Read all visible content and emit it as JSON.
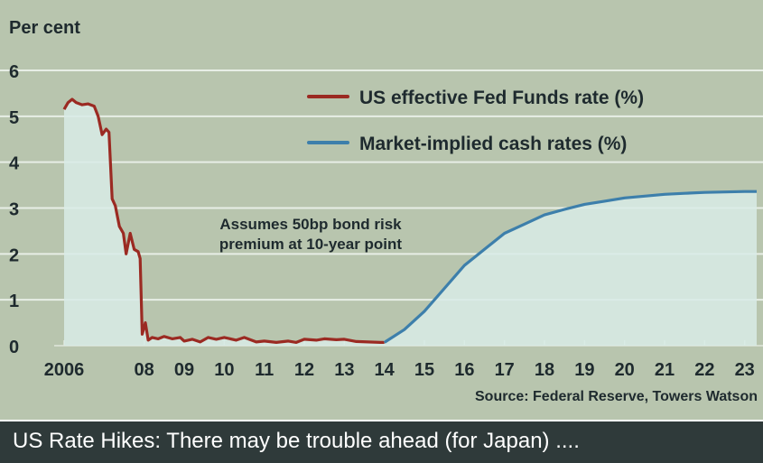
{
  "colors": {
    "background": "#b8c5ae",
    "fed_funds": "#9b2a22",
    "market_implied": "#3d7fab",
    "area_fill": "#d8ebe6",
    "gridline": "#e7eee6",
    "text": "#1e2a2e",
    "caption_bg": "#2f3a3a",
    "caption_text": "#ffffff"
  },
  "caption": "US Rate Hikes: There may be trouble ahead (for Japan) ....",
  "chart_data": {
    "type": "line",
    "ylabel": "Per cent",
    "ylim": [
      0,
      6
    ],
    "xlim": [
      2006,
      2023.3
    ],
    "yticks": [
      0,
      1,
      2,
      3,
      4,
      5,
      6
    ],
    "grid": true,
    "legend_position": "top-right",
    "xtick_labels": [
      {
        "x": 2006,
        "label": "2006"
      },
      {
        "x": 2008,
        "label": "08"
      },
      {
        "x": 2009,
        "label": "09"
      },
      {
        "x": 2010,
        "label": "10"
      },
      {
        "x": 2011,
        "label": "11"
      },
      {
        "x": 2012,
        "label": "12"
      },
      {
        "x": 2013,
        "label": "13"
      },
      {
        "x": 2014,
        "label": "14"
      },
      {
        "x": 2015,
        "label": "15"
      },
      {
        "x": 2016,
        "label": "16"
      },
      {
        "x": 2017,
        "label": "17"
      },
      {
        "x": 2018,
        "label": "18"
      },
      {
        "x": 2019,
        "label": "19"
      },
      {
        "x": 2020,
        "label": "20"
      },
      {
        "x": 2021,
        "label": "21"
      },
      {
        "x": 2022,
        "label": "22"
      },
      {
        "x": 2023,
        "label": "23"
      }
    ],
    "annotation": [
      "Assumes 50bp bond risk",
      "premium at 10-year point"
    ],
    "source": "Source: Federal Reserve, Towers Watson",
    "series": [
      {
        "name": "US effective Fed Funds rate (%)",
        "color": "#9b2a22",
        "points": [
          [
            2006.0,
            5.15
          ],
          [
            2006.1,
            5.3
          ],
          [
            2006.2,
            5.37
          ],
          [
            2006.3,
            5.3
          ],
          [
            2006.45,
            5.25
          ],
          [
            2006.6,
            5.27
          ],
          [
            2006.75,
            5.22
          ],
          [
            2006.85,
            5.0
          ],
          [
            2006.95,
            4.6
          ],
          [
            2007.05,
            4.72
          ],
          [
            2007.12,
            4.65
          ],
          [
            2007.2,
            3.2
          ],
          [
            2007.28,
            3.05
          ],
          [
            2007.38,
            2.6
          ],
          [
            2007.48,
            2.45
          ],
          [
            2007.55,
            2.0
          ],
          [
            2007.65,
            2.45
          ],
          [
            2007.75,
            2.1
          ],
          [
            2007.85,
            2.05
          ],
          [
            2007.9,
            1.9
          ],
          [
            2007.95,
            0.25
          ],
          [
            2008.03,
            0.5
          ],
          [
            2008.1,
            0.12
          ],
          [
            2008.2,
            0.18
          ],
          [
            2008.35,
            0.15
          ],
          [
            2008.5,
            0.2
          ],
          [
            2008.7,
            0.15
          ],
          [
            2008.9,
            0.18
          ],
          [
            2009.0,
            0.1
          ],
          [
            2009.2,
            0.14
          ],
          [
            2009.4,
            0.08
          ],
          [
            2009.6,
            0.18
          ],
          [
            2009.8,
            0.14
          ],
          [
            2010.0,
            0.18
          ],
          [
            2010.3,
            0.12
          ],
          [
            2010.5,
            0.18
          ],
          [
            2010.8,
            0.08
          ],
          [
            2011.0,
            0.1
          ],
          [
            2011.3,
            0.07
          ],
          [
            2011.6,
            0.1
          ],
          [
            2011.8,
            0.07
          ],
          [
            2012.0,
            0.14
          ],
          [
            2012.3,
            0.12
          ],
          [
            2012.5,
            0.15
          ],
          [
            2012.8,
            0.13
          ],
          [
            2013.0,
            0.14
          ],
          [
            2013.3,
            0.09
          ],
          [
            2013.6,
            0.08
          ],
          [
            2013.9,
            0.07
          ],
          [
            2014.0,
            0.07
          ]
        ]
      },
      {
        "name": "Market-implied cash rates (%)",
        "color": "#3d7fab",
        "points": [
          [
            2014.0,
            0.07
          ],
          [
            2014.5,
            0.35
          ],
          [
            2015.0,
            0.75
          ],
          [
            2015.5,
            1.25
          ],
          [
            2016.0,
            1.75
          ],
          [
            2016.5,
            2.1
          ],
          [
            2017.0,
            2.45
          ],
          [
            2017.5,
            2.65
          ],
          [
            2018.0,
            2.85
          ],
          [
            2018.5,
            2.97
          ],
          [
            2019.0,
            3.08
          ],
          [
            2019.5,
            3.15
          ],
          [
            2020.0,
            3.22
          ],
          [
            2020.5,
            3.26
          ],
          [
            2021.0,
            3.3
          ],
          [
            2021.5,
            3.32
          ],
          [
            2022.0,
            3.34
          ],
          [
            2022.5,
            3.35
          ],
          [
            2023.0,
            3.36
          ],
          [
            2023.3,
            3.36
          ]
        ]
      }
    ]
  }
}
